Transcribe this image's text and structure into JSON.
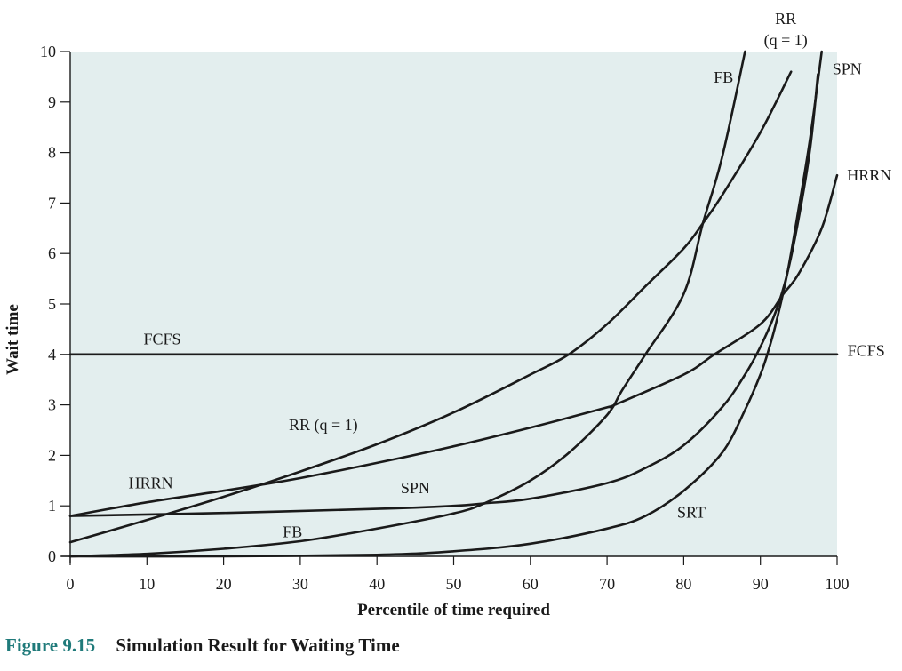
{
  "caption": {
    "number": "Figure 9.15",
    "title": "Simulation Result for Waiting Time"
  },
  "colors": {
    "plot_background": "#e3eeee",
    "line": "#1a1a1a",
    "caption_number": "#1f7a7a"
  },
  "chart_data": {
    "type": "line",
    "title": "",
    "xlabel": "Percentile of time required",
    "ylabel": "Wait time",
    "xlim": [
      0,
      100
    ],
    "ylim": [
      0,
      10
    ],
    "xticks": [
      0,
      10,
      20,
      30,
      40,
      50,
      60,
      70,
      80,
      90,
      100
    ],
    "yticks": [
      0,
      1,
      2,
      3,
      4,
      5,
      6,
      7,
      8,
      9,
      10
    ],
    "grid": false,
    "legend": "none (series labelled directly on the curves)",
    "series": [
      {
        "name": "FCFS",
        "x": [
          0,
          100
        ],
        "y": [
          4,
          4
        ]
      },
      {
        "name": "RR (q = 1)",
        "x": [
          0,
          10,
          20,
          30,
          40,
          50,
          60,
          65,
          70,
          75,
          80,
          82.5,
          85,
          90,
          94
        ],
        "y": [
          0.28,
          0.72,
          1.18,
          1.68,
          2.22,
          2.85,
          3.6,
          4.0,
          4.6,
          5.35,
          6.1,
          6.6,
          7.15,
          8.4,
          9.6
        ]
      },
      {
        "name": "HRRN",
        "x": [
          0,
          10,
          20,
          25,
          30,
          40,
          50,
          60,
          70,
          71,
          80,
          84,
          90,
          93,
          95,
          98,
          100
        ],
        "y": [
          0.8,
          1.07,
          1.3,
          1.42,
          1.55,
          1.85,
          2.18,
          2.55,
          2.95,
          3.0,
          3.6,
          4.0,
          4.6,
          5.2,
          5.6,
          6.5,
          7.55
        ]
      },
      {
        "name": "SPN",
        "x": [
          0,
          20,
          40,
          50,
          54,
          60,
          70,
          75,
          80,
          85,
          88,
          90,
          92,
          93.5,
          95,
          96.5,
          97.5
        ],
        "y": [
          0.8,
          0.86,
          0.94,
          1.0,
          1.05,
          1.14,
          1.45,
          1.75,
          2.2,
          2.95,
          3.6,
          4.15,
          4.85,
          5.6,
          6.7,
          8.1,
          9.55
        ]
      },
      {
        "name": "FB",
        "x": [
          0,
          10,
          20,
          30,
          40,
          50,
          54,
          60,
          65,
          70,
          72,
          75,
          80,
          82.5,
          85,
          88
        ],
        "y": [
          0.0,
          0.05,
          0.15,
          0.3,
          0.55,
          0.85,
          1.05,
          1.5,
          2.05,
          2.8,
          3.3,
          4.0,
          5.2,
          6.6,
          7.9,
          10.0
        ]
      },
      {
        "name": "SRT",
        "x": [
          0,
          20,
          40,
          50,
          60,
          70,
          75,
          80,
          85,
          88,
          90,
          91,
          92,
          93.5,
          95,
          96.5,
          98
        ],
        "y": [
          0.0,
          0.0,
          0.03,
          0.1,
          0.25,
          0.55,
          0.8,
          1.3,
          2.05,
          2.9,
          3.6,
          4.05,
          4.6,
          5.6,
          6.9,
          8.3,
          10.0
        ]
      }
    ],
    "labels": [
      {
        "text": "FCFS",
        "x": 12,
        "y": 4.2
      },
      {
        "text": "FCFS",
        "x": 103.8,
        "y": 3.97
      },
      {
        "text": "RR (q = 1)",
        "x": 33,
        "y": 2.5
      },
      {
        "text": "RR",
        "x": 93.3,
        "y": 10.55
      },
      {
        "text": "(q = 1)",
        "x": 93.3,
        "y": 10.12
      },
      {
        "text": "HRRN",
        "x": 10.5,
        "y": 1.35
      },
      {
        "text": "HRRN",
        "x": 104.2,
        "y": 7.45
      },
      {
        "text": "SPN",
        "x": 45,
        "y": 1.25
      },
      {
        "text": "SPN",
        "x": 101.3,
        "y": 9.55
      },
      {
        "text": "FB",
        "x": 29,
        "y": 0.38
      },
      {
        "text": "FB",
        "x": 85.2,
        "y": 9.38
      },
      {
        "text": "SRT",
        "x": 81,
        "y": 0.77
      }
    ]
  }
}
